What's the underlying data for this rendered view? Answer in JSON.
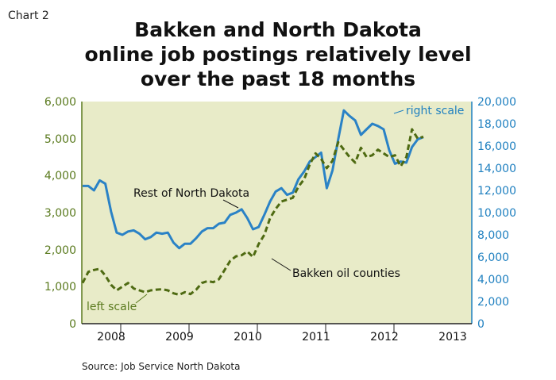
{
  "chart_label": "Chart 2",
  "title_lines": [
    "Bakken and North Dakota",
    "online job postings relatively level",
    "over the past 18 months"
  ],
  "source": "Source: Job Service North Dakota",
  "colors": {
    "plot_background": "#e8ebc8",
    "left_axis": "#5a7a1e",
    "right_axis": "#1f80c0",
    "rest_of_nd_line": "#2a82c6",
    "bakken_line": "#4e6a12"
  },
  "chart_data": {
    "type": "line",
    "title": "Bakken and North Dakota online job postings relatively level over the past 18 months",
    "x_start": "2007-08",
    "x_step": "month",
    "x_tick_labels": [
      "2008",
      "2009",
      "2010",
      "2011",
      "2012",
      "2013"
    ],
    "y_left": {
      "min": 0,
      "max": 6000,
      "ticks": [
        "0",
        "1,000",
        "2,000",
        "3,000",
        "4,000",
        "5,000",
        "6,000"
      ],
      "annotation": "left scale"
    },
    "y_right": {
      "min": 0,
      "max": 20000,
      "ticks": [
        "0",
        "2,000",
        "4,000",
        "6,000",
        "8,000",
        "10,000",
        "12,000",
        "14,000",
        "16,000",
        "18,000",
        "20,000"
      ],
      "annotation": "right scale"
    },
    "grid": false,
    "series": [
      {
        "name": "Rest of North Dakota",
        "axis": "right",
        "style": "solid",
        "values": [
          12400,
          12400,
          12000,
          12900,
          12600,
          10100,
          8200,
          8000,
          8300,
          8400,
          8100,
          7600,
          7800,
          8200,
          8100,
          8200,
          7300,
          6800,
          7200,
          7200,
          7700,
          8300,
          8600,
          8600,
          9000,
          9100,
          9800,
          10000,
          10300,
          9500,
          8500,
          8700,
          9800,
          11000,
          11900,
          12200,
          11600,
          11800,
          13000,
          13700,
          14600,
          15000,
          15400,
          12200,
          13800,
          16600,
          19200,
          18700,
          18300,
          17000,
          17500,
          18000,
          17800,
          17500,
          15600,
          14400,
          14600,
          14500,
          15900,
          16600,
          16800
        ]
      },
      {
        "name": "Bakken oil counties",
        "axis": "left",
        "style": "dashed",
        "values": [
          1100,
          1400,
          1450,
          1480,
          1300,
          1050,
          900,
          1000,
          1100,
          950,
          900,
          850,
          900,
          920,
          930,
          900,
          820,
          780,
          850,
          800,
          920,
          1100,
          1150,
          1120,
          1200,
          1450,
          1700,
          1820,
          1850,
          1950,
          1800,
          2150,
          2400,
          2850,
          3100,
          3300,
          3350,
          3400,
          3700,
          3900,
          4300,
          4600,
          4450,
          4200,
          4400,
          4900,
          4700,
          4500,
          4350,
          4750,
          4500,
          4550,
          4700,
          4600,
          4500,
          4550,
          4250,
          4500,
          5250,
          5000,
          5050
        ]
      }
    ],
    "annotations": [
      {
        "text": "Rest of North Dakota",
        "series": "Rest of North Dakota"
      },
      {
        "text": "Bakken oil counties",
        "series": "Bakken oil counties"
      }
    ]
  }
}
